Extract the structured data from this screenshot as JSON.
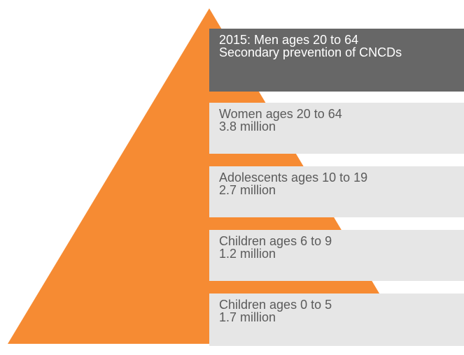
{
  "colors": {
    "pyramid": "#f68b33",
    "top_box": "#676767",
    "tier_box": "#e6e6e6",
    "tier_text": "#5b5b5b",
    "top_text": "#ffffff"
  },
  "tiers": [
    {
      "line1": "2015: Men ages 20 to 64",
      "line2": "Secondary prevention of CNCDs"
    },
    {
      "line1": "Women ages 20 to 64",
      "line2": "3.8 million"
    },
    {
      "line1": "Adolescents ages 10 to 19",
      "line2": "2.7 million"
    },
    {
      "line1": "Children ages 6 to 9",
      "line2": "1.2 million"
    },
    {
      "line1": "Children ages 0 to 5",
      "line2": "1.7 million"
    }
  ]
}
